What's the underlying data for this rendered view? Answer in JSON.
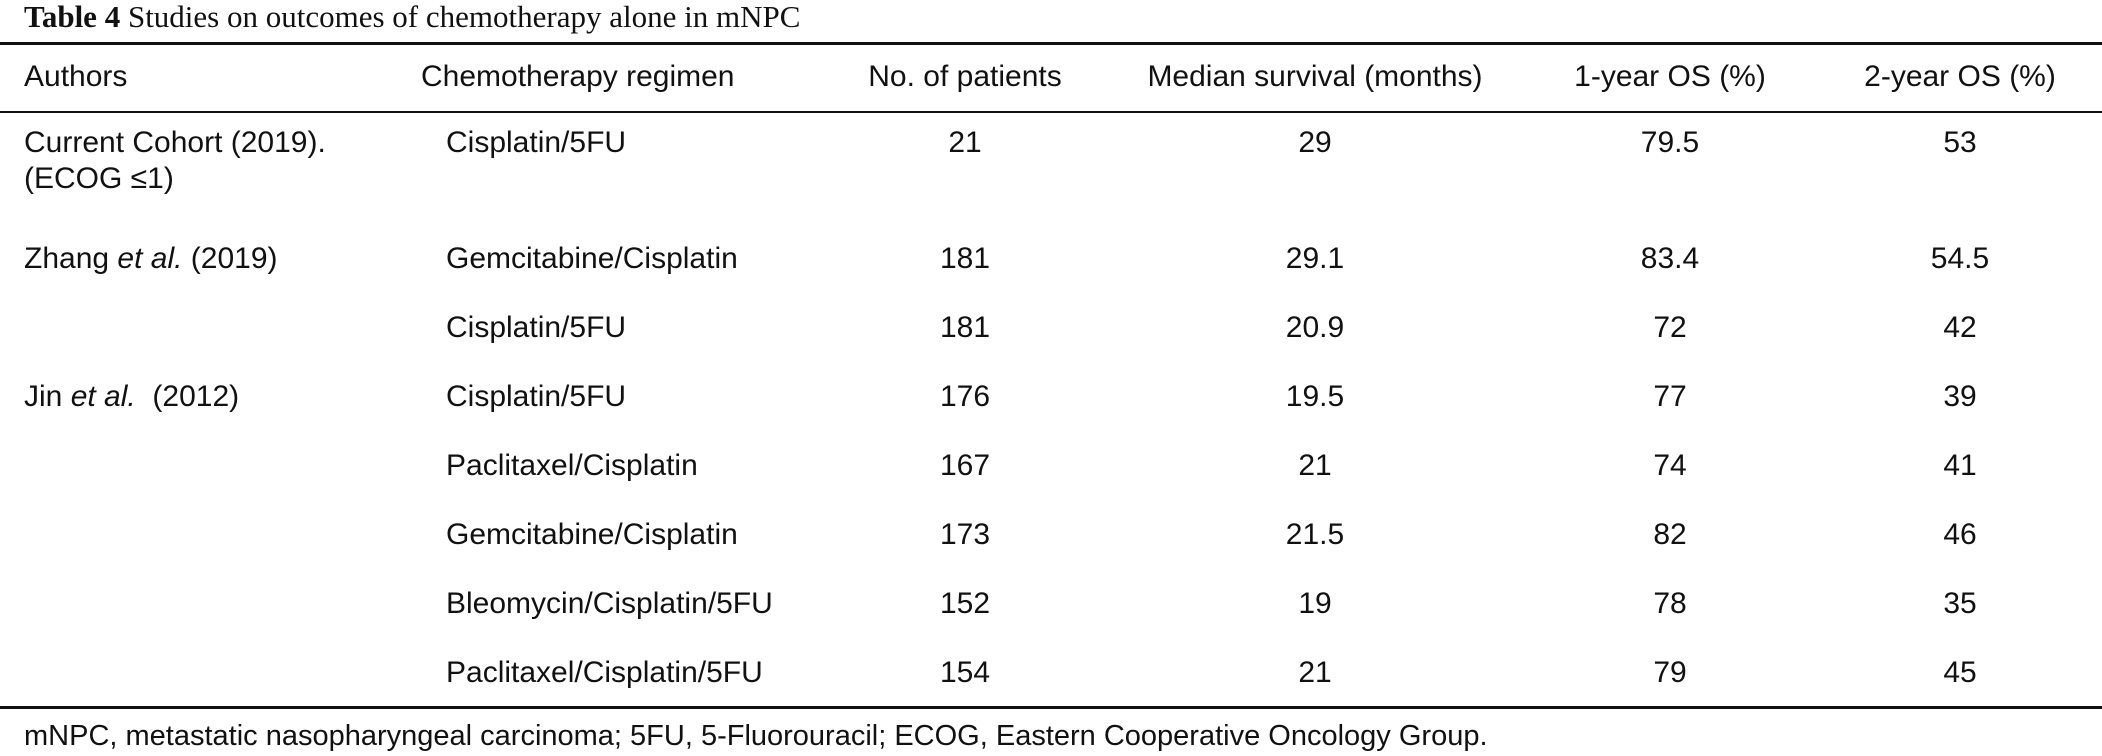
{
  "caption": {
    "label": "Table 4",
    "text": " Studies on outcomes of chemotherapy alone in mNPC"
  },
  "headers": {
    "authors": "Authors",
    "regimen": "Chemotherapy regimen",
    "patients": "No. of patients",
    "median": "Median survival (months)",
    "os1": "1-year OS (%)",
    "os2": "2-year OS (%)"
  },
  "rows": [
    {
      "author_main": "Current Cohort (2019).",
      "author_etal": "",
      "author_year": "",
      "author_line2": "(ECOG ≤1)",
      "regimen": "Cisplatin/5FU",
      "patients": "21",
      "median": "29",
      "os1": "79.5",
      "os2": "53"
    },
    {
      "author_main": "Zhang ",
      "author_etal": "et al.",
      "author_year": " (2019)",
      "author_line2": "",
      "regimen": "Gemcitabine/Cisplatin",
      "patients": "181",
      "median": "29.1",
      "os1": "83.4",
      "os2": "54.5"
    },
    {
      "author_main": "",
      "author_etal": "",
      "author_year": "",
      "author_line2": "",
      "regimen": "Cisplatin/5FU",
      "patients": "181",
      "median": "20.9",
      "os1": "72",
      "os2": "42"
    },
    {
      "author_main": "Jin ",
      "author_etal": "et al.",
      "author_year": "  (2012)",
      "author_line2": "",
      "regimen": "Cisplatin/5FU",
      "patients": "176",
      "median": "19.5",
      "os1": "77",
      "os2": "39"
    },
    {
      "author_main": "",
      "author_etal": "",
      "author_year": "",
      "author_line2": "",
      "regimen": "Paclitaxel/Cisplatin",
      "patients": "167",
      "median": "21",
      "os1": "74",
      "os2": "41"
    },
    {
      "author_main": "",
      "author_etal": "",
      "author_year": "",
      "author_line2": "",
      "regimen": "Gemcitabine/Cisplatin",
      "patients": "173",
      "median": "21.5",
      "os1": "82",
      "os2": "46"
    },
    {
      "author_main": "",
      "author_etal": "",
      "author_year": "",
      "author_line2": "",
      "regimen": "Bleomycin/Cisplatin/5FU",
      "patients": "152",
      "median": "19",
      "os1": "78",
      "os2": "35"
    },
    {
      "author_main": "",
      "author_etal": "",
      "author_year": "",
      "author_line2": "",
      "regimen": "Paclitaxel/Cisplatin/5FU",
      "patients": "154",
      "median": "21",
      "os1": "79",
      "os2": "45"
    }
  ],
  "footnote": "mNPC, metastatic nasopharyngeal carcinoma; 5FU, 5-Fluorouracil; ECOG, Eastern Cooperative Oncology Group."
}
